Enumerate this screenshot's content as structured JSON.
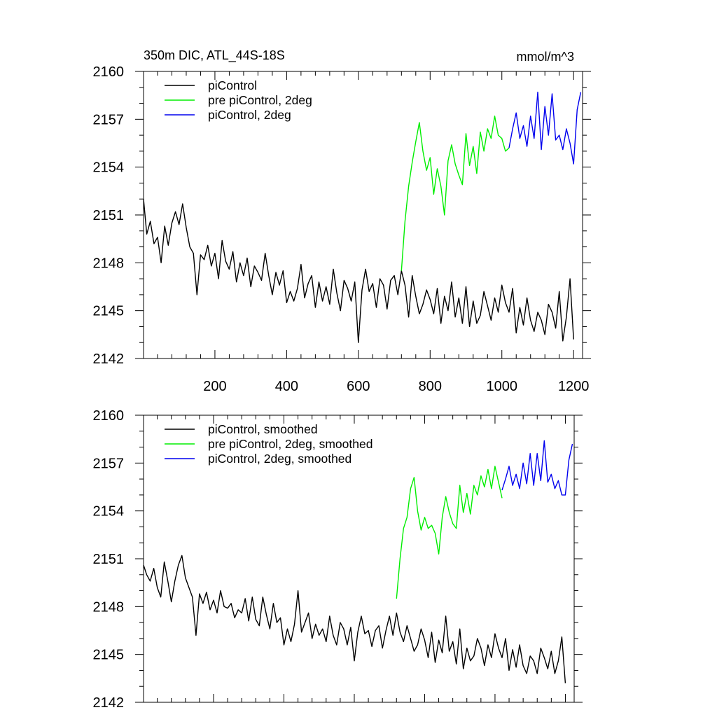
{
  "chart_data": [
    {
      "type": "line",
      "title_left": "350m DIC, ATL_44S-18S",
      "title_right": "mmol/m^3",
      "xlabel": "",
      "ylabel": "",
      "xlim": [
        1,
        1225
      ],
      "ylim": [
        2142,
        2160
      ],
      "x_ticks": [
        200,
        400,
        600,
        800,
        1000,
        1200
      ],
      "x_tick_labels": [
        "200",
        "400",
        "600",
        "800",
        "1000",
        "1200"
      ],
      "y_ticks": [
        2142,
        2145,
        2148,
        2151,
        2154,
        2157,
        2160
      ],
      "y_tick_labels": [
        "2142",
        "2145",
        "2148",
        "2151",
        "2154",
        "2157",
        "2160"
      ],
      "legend_position": "top-left",
      "series": [
        {
          "name": "piControl",
          "color": "#000000",
          "x": [
            1,
            10,
            20,
            30,
            40,
            50,
            60,
            70,
            80,
            90,
            100,
            110,
            120,
            130,
            140,
            150,
            160,
            170,
            180,
            190,
            200,
            210,
            220,
            230,
            240,
            250,
            260,
            270,
            280,
            290,
            300,
            310,
            320,
            330,
            340,
            350,
            360,
            370,
            380,
            390,
            400,
            410,
            420,
            430,
            440,
            450,
            460,
            470,
            480,
            490,
            500,
            510,
            520,
            530,
            540,
            550,
            560,
            570,
            580,
            590,
            600,
            610,
            620,
            630,
            640,
            650,
            660,
            670,
            680,
            690,
            700,
            710,
            720,
            730,
            740,
            750,
            760,
            770,
            780,
            790,
            800,
            810,
            820,
            830,
            840,
            850,
            860,
            870,
            880,
            890,
            900,
            910,
            920,
            930,
            940,
            950,
            960,
            970,
            980,
            990,
            1000,
            1010,
            1020,
            1030,
            1040,
            1050,
            1060,
            1070,
            1080,
            1090,
            1100,
            1110,
            1120,
            1130,
            1140,
            1150,
            1160,
            1170,
            1180,
            1190,
            1200
          ],
          "values": [
            2152.0,
            2149.8,
            2150.6,
            2149.2,
            2149.6,
            2148.0,
            2150.3,
            2149.1,
            2150.5,
            2151.2,
            2150.4,
            2151.7,
            2150.2,
            2149.0,
            2148.6,
            2146.0,
            2148.5,
            2148.2,
            2149.1,
            2147.8,
            2148.6,
            2147.0,
            2149.4,
            2148.1,
            2147.6,
            2148.7,
            2146.8,
            2148.0,
            2147.2,
            2148.3,
            2146.5,
            2147.8,
            2147.4,
            2146.9,
            2148.6,
            2147.2,
            2146.0,
            2147.4,
            2146.6,
            2147.5,
            2145.5,
            2146.2,
            2145.6,
            2146.4,
            2147.9,
            2145.8,
            2146.7,
            2147.2,
            2145.2,
            2146.8,
            2145.6,
            2146.5,
            2145.4,
            2147.6,
            2146.1,
            2145.0,
            2146.9,
            2146.4,
            2145.6,
            2146.8,
            2143.0,
            2146.3,
            2147.6,
            2146.2,
            2146.7,
            2145.2,
            2147.0,
            2146.6,
            2145.1,
            2146.9,
            2147.2,
            2146.0,
            2147.5,
            2146.6,
            2144.6,
            2147.2,
            2145.9,
            2144.8,
            2145.4,
            2146.3,
            2145.7,
            2144.8,
            2146.4,
            2144.2,
            2145.9,
            2145.0,
            2146.8,
            2144.6,
            2145.8,
            2144.2,
            2146.5,
            2144.0,
            2145.6,
            2144.2,
            2144.7,
            2146.2,
            2145.3,
            2144.4,
            2145.8,
            2144.9,
            2146.6,
            2145.5,
            2144.9,
            2146.4,
            2143.6,
            2145.2,
            2144.1,
            2145.8,
            2144.4,
            2143.7,
            2144.9,
            2144.4,
            2143.5,
            2145.4,
            2144.9,
            2143.9,
            2146.2,
            2143.1,
            2144.6,
            2147.0,
            2143.2
          ]
        },
        {
          "name": "pre piControl, 2deg",
          "color": "#00ee00",
          "x": [
            720,
            730,
            740,
            750,
            760,
            770,
            780,
            790,
            800,
            810,
            820,
            830,
            840,
            850,
            860,
            870,
            880,
            890,
            900,
            910,
            920,
            930,
            940,
            950,
            960,
            970,
            980,
            990,
            1000,
            1010,
            1020
          ],
          "values": [
            2147.5,
            2150.6,
            2152.8,
            2154.3,
            2155.6,
            2156.8,
            2155.0,
            2153.8,
            2154.6,
            2152.3,
            2153.9,
            2152.8,
            2151.0,
            2154.4,
            2155.4,
            2154.2,
            2153.5,
            2152.9,
            2156.1,
            2154.1,
            2155.3,
            2153.6,
            2156.2,
            2155.0,
            2156.4,
            2155.8,
            2157.2,
            2156.0,
            2155.8,
            2155.0,
            2155.2
          ]
        },
        {
          "name": "piControl, 2deg",
          "color": "#0000ee",
          "x": [
            1020,
            1030,
            1040,
            1050,
            1060,
            1070,
            1080,
            1090,
            1100,
            1110,
            1120,
            1130,
            1140,
            1150,
            1160,
            1170,
            1180,
            1190,
            1200,
            1210,
            1220
          ],
          "values": [
            2155.2,
            2156.4,
            2157.4,
            2155.8,
            2156.6,
            2155.3,
            2157.2,
            2155.8,
            2158.7,
            2155.1,
            2157.8,
            2156.0,
            2158.6,
            2155.7,
            2156.0,
            2155.1,
            2156.4,
            2155.5,
            2154.2,
            2157.6,
            2158.7
          ]
        }
      ]
    },
    {
      "type": "line",
      "title_left": "",
      "title_right": "",
      "xlabel": "",
      "ylabel": "",
      "xlim": [
        1,
        1225
      ],
      "ylim": [
        2142,
        2160
      ],
      "x_ticks": [
        200,
        400,
        600,
        800,
        1000,
        1200
      ],
      "x_tick_labels": [],
      "y_ticks": [
        2142,
        2145,
        2148,
        2151,
        2154,
        2157,
        2160
      ],
      "y_tick_labels": [
        "2142",
        "2145",
        "2148",
        "2151",
        "2154",
        "2157",
        "2160"
      ],
      "legend_position": "top-left",
      "series": [
        {
          "name": "piControl, smoothed",
          "color": "#000000",
          "x": [
            1,
            10,
            20,
            30,
            40,
            50,
            60,
            70,
            80,
            90,
            100,
            110,
            120,
            130,
            140,
            150,
            160,
            170,
            180,
            190,
            200,
            210,
            220,
            230,
            240,
            250,
            260,
            270,
            280,
            290,
            300,
            310,
            320,
            330,
            340,
            350,
            360,
            370,
            380,
            390,
            400,
            410,
            420,
            430,
            440,
            450,
            460,
            470,
            480,
            490,
            500,
            510,
            520,
            530,
            540,
            550,
            560,
            570,
            580,
            590,
            600,
            610,
            620,
            630,
            640,
            650,
            660,
            670,
            680,
            690,
            700,
            710,
            720,
            730,
            740,
            750,
            760,
            770,
            780,
            790,
            800,
            810,
            820,
            830,
            840,
            850,
            860,
            870,
            880,
            890,
            900,
            910,
            920,
            930,
            940,
            950,
            960,
            970,
            980,
            990,
            1000,
            1010,
            1020,
            1030,
            1040,
            1050,
            1060,
            1070,
            1080,
            1090,
            1100,
            1110,
            1120,
            1130,
            1140,
            1150,
            1160,
            1170,
            1180,
            1190,
            1200
          ],
          "values": [
            2150.6,
            2150.0,
            2149.6,
            2150.4,
            2149.2,
            2148.6,
            2150.8,
            2149.6,
            2148.3,
            2149.6,
            2150.6,
            2151.2,
            2149.8,
            2149.2,
            2148.6,
            2146.2,
            2148.8,
            2148.2,
            2148.9,
            2147.8,
            2148.4,
            2147.6,
            2149.0,
            2148.0,
            2147.9,
            2148.2,
            2147.3,
            2147.8,
            2147.6,
            2148.5,
            2147.1,
            2148.6,
            2147.2,
            2146.8,
            2148.6,
            2147.5,
            2146.6,
            2148.2,
            2147.0,
            2147.3,
            2145.6,
            2146.6,
            2145.8,
            2146.9,
            2149.0,
            2146.4,
            2147.0,
            2147.6,
            2146.0,
            2146.9,
            2146.2,
            2146.6,
            2145.8,
            2147.4,
            2146.2,
            2145.6,
            2147.0,
            2146.6,
            2145.6,
            2146.7,
            2144.6,
            2146.4,
            2147.4,
            2146.3,
            2146.5,
            2145.5,
            2146.5,
            2146.8,
            2145.4,
            2146.5,
            2147.4,
            2146.2,
            2147.6,
            2146.4,
            2145.8,
            2146.8,
            2146.0,
            2145.2,
            2145.6,
            2146.6,
            2145.9,
            2144.8,
            2146.4,
            2144.5,
            2145.9,
            2145.1,
            2147.4,
            2145.2,
            2145.8,
            2144.4,
            2146.6,
            2144.1,
            2145.4,
            2144.6,
            2144.9,
            2146.0,
            2145.4,
            2144.3,
            2145.6,
            2144.8,
            2146.3,
            2145.4,
            2144.8,
            2146.0,
            2144.0,
            2145.3,
            2144.2,
            2145.6,
            2144.3,
            2143.8,
            2144.9,
            2144.6,
            2143.8,
            2145.4,
            2144.8,
            2144.1,
            2145.2,
            2143.8,
            2144.6,
            2146.1,
            2143.2
          ]
        },
        {
          "name": "pre piControl, 2deg, smoothed",
          "color": "#00ee00",
          "x": [
            720,
            730,
            740,
            750,
            760,
            770,
            780,
            790,
            800,
            810,
            820,
            830,
            840,
            850,
            860,
            870,
            880,
            890,
            900,
            910,
            920,
            930,
            940,
            950,
            960,
            970,
            980,
            990,
            1000,
            1010,
            1020
          ],
          "values": [
            2148.5,
            2151.0,
            2152.9,
            2153.6,
            2155.4,
            2156.1,
            2154.0,
            2152.8,
            2153.6,
            2152.9,
            2153.1,
            2152.6,
            2151.3,
            2153.6,
            2154.9,
            2153.9,
            2153.2,
            2152.9,
            2155.6,
            2153.9,
            2155.1,
            2153.8,
            2155.6,
            2155.0,
            2156.2,
            2155.5,
            2156.6,
            2155.4,
            2156.8,
            2155.8,
            2154.8
          ]
        },
        {
          "name": "piControl, 2deg, smoothed",
          "color": "#0000ee",
          "x": [
            1020,
            1030,
            1040,
            1050,
            1060,
            1070,
            1080,
            1090,
            1100,
            1110,
            1120,
            1130,
            1140,
            1150,
            1160,
            1170,
            1180,
            1190,
            1200,
            1210,
            1220
          ],
          "values": [
            2155.3,
            2156.0,
            2156.8,
            2155.6,
            2156.3,
            2155.4,
            2157.0,
            2155.7,
            2157.6,
            2155.6,
            2157.6,
            2155.9,
            2158.4,
            2155.8,
            2156.3,
            2155.4,
            2155.9,
            2155.0,
            2155.0,
            2157.2,
            2158.2
          ]
        }
      ]
    }
  ]
}
